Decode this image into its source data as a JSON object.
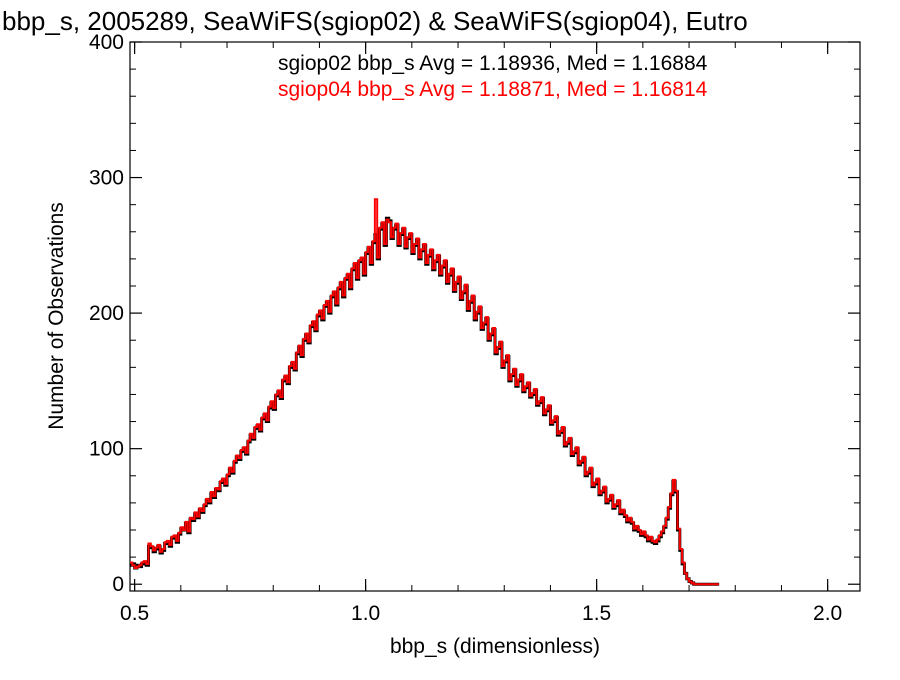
{
  "chart_data": {
    "type": "line",
    "title": "bbp_s, 2005289, SeaWiFS(sgiop02) & SeaWiFS(sgiop04), Eutro",
    "xlabel": "bbp_s (dimensionless)",
    "ylabel": "Number of Observations",
    "xlim": [
      0.49,
      2.07
    ],
    "ylim": [
      -5,
      400
    ],
    "xticks": [
      {
        "value": 0.5,
        "label": "0.5"
      },
      {
        "value": 1.0,
        "label": "1.0"
      },
      {
        "value": 1.5,
        "label": "1.5"
      },
      {
        "value": 2.0,
        "label": "2.0"
      }
    ],
    "yticks": [
      {
        "value": 0,
        "label": "0"
      },
      {
        "value": 100,
        "label": "100"
      },
      {
        "value": 200,
        "label": "200"
      },
      {
        "value": 300,
        "label": "300"
      },
      {
        "value": 400,
        "label": "400"
      }
    ],
    "annotations": [
      {
        "text": "sgiop02 bbp_s Avg = 1.18936, Med = 1.16884",
        "color": "#000000"
      },
      {
        "text": "sgiop04 bbp_s Avg = 1.18871, Med = 1.16814",
        "color": "#ff0000"
      }
    ],
    "bin_width": 0.005,
    "x_start": 0.49,
    "series": [
      {
        "name": "sgiop02",
        "color": "#000000",
        "values": [
          14,
          15,
          12,
          14,
          13,
          15,
          16,
          14,
          28,
          27,
          24,
          26,
          28,
          23,
          25,
          30,
          31,
          28,
          34,
          35,
          31,
          37,
          41,
          40,
          45,
          38,
          48,
          47,
          52,
          49,
          55,
          53,
          58,
          62,
          60,
          67,
          64,
          70,
          69,
          75,
          77,
          73,
          80,
          85,
          82,
          90,
          94,
          92,
          98,
          100,
          96,
          105,
          110,
          107,
          115,
          117,
          113,
          122,
          125,
          120,
          130,
          134,
          129,
          139,
          142,
          137,
          150,
          153,
          148,
          160,
          163,
          158,
          170,
          175,
          168,
          180,
          184,
          178,
          190,
          193,
          187,
          198,
          201,
          195,
          205,
          208,
          200,
          212,
          215,
          206,
          218,
          222,
          212,
          225,
          228,
          218,
          232,
          236,
          225,
          238,
          240,
          228,
          244,
          248,
          236,
          252,
          258,
          240,
          262,
          266,
          250,
          270,
          268,
          255,
          262,
          265,
          250,
          258,
          262,
          248,
          255,
          258,
          244,
          250,
          254,
          240,
          246,
          250,
          236,
          242,
          246,
          232,
          238,
          242,
          228,
          234,
          238,
          222,
          228,
          232,
          216,
          222,
          226,
          210,
          215,
          220,
          202,
          208,
          212,
          195,
          200,
          204,
          188,
          192,
          196,
          180,
          184,
          188,
          170,
          174,
          178,
          160,
          164,
          168,
          150,
          154,
          158,
          146,
          150,
          154,
          142,
          145,
          148,
          138,
          140,
          143,
          132,
          134,
          137,
          125,
          128,
          131,
          118,
          120,
          123,
          110,
          112,
          115,
          102,
          104,
          107,
          95,
          97,
          100,
          88,
          90,
          93,
          80,
          82,
          85,
          72,
          74,
          77,
          66,
          68,
          71,
          60,
          62,
          65,
          56,
          58,
          61,
          52,
          54,
          50,
          46,
          48,
          45,
          40,
          42,
          39,
          36,
          38,
          35,
          32,
          34,
          31,
          30,
          32,
          35,
          38,
          42,
          48,
          56,
          66,
          76,
          68,
          40,
          25,
          15,
          8,
          4,
          2,
          1,
          0,
          0,
          0,
          0,
          0,
          0,
          0,
          0,
          0,
          0,
          0
        ]
      },
      {
        "name": "sgiop04",
        "color": "#ff0000",
        "values": [
          16,
          14,
          12,
          13,
          14,
          16,
          17,
          15,
          30,
          28,
          25,
          27,
          29,
          24,
          26,
          31,
          32,
          29,
          35,
          36,
          32,
          38,
          42,
          40,
          46,
          39,
          49,
          48,
          53,
          50,
          56,
          54,
          59,
          63,
          61,
          68,
          65,
          71,
          70,
          76,
          78,
          74,
          81,
          86,
          83,
          91,
          95,
          93,
          99,
          101,
          97,
          106,
          111,
          108,
          116,
          118,
          114,
          123,
          126,
          121,
          131,
          135,
          130,
          140,
          143,
          138,
          151,
          154,
          149,
          161,
          164,
          159,
          171,
          176,
          169,
          181,
          185,
          179,
          191,
          194,
          188,
          199,
          202,
          196,
          206,
          209,
          201,
          213,
          216,
          207,
          219,
          223,
          213,
          226,
          229,
          219,
          233,
          237,
          226,
          239,
          241,
          229,
          245,
          249,
          237,
          253,
          284,
          241,
          263,
          267,
          251,
          269,
          267,
          256,
          263,
          266,
          251,
          259,
          263,
          249,
          256,
          259,
          245,
          251,
          255,
          241,
          247,
          251,
          237,
          243,
          247,
          233,
          239,
          243,
          229,
          235,
          239,
          223,
          229,
          233,
          217,
          223,
          227,
          211,
          216,
          221,
          203,
          209,
          213,
          196,
          201,
          205,
          189,
          193,
          197,
          181,
          185,
          189,
          171,
          175,
          179,
          161,
          165,
          169,
          151,
          155,
          159,
          147,
          151,
          155,
          143,
          146,
          149,
          139,
          141,
          144,
          133,
          135,
          138,
          126,
          129,
          132,
          119,
          121,
          124,
          111,
          113,
          116,
          103,
          105,
          108,
          96,
          98,
          101,
          89,
          91,
          94,
          81,
          83,
          86,
          73,
          75,
          78,
          67,
          69,
          72,
          61,
          63,
          66,
          57,
          59,
          62,
          53,
          55,
          51,
          47,
          49,
          46,
          41,
          43,
          40,
          37,
          39,
          36,
          33,
          35,
          32,
          31,
          33,
          36,
          39,
          43,
          49,
          57,
          67,
          77,
          69,
          41,
          26,
          16,
          8,
          4,
          2,
          1,
          0,
          0,
          0,
          0,
          0,
          0,
          0,
          0,
          0,
          0,
          0
        ]
      }
    ]
  }
}
